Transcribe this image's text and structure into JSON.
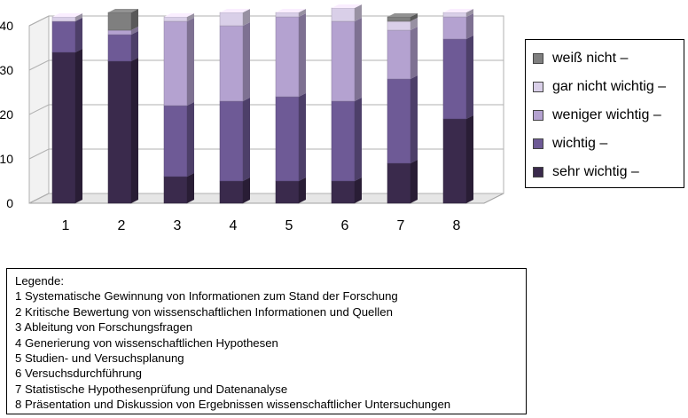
{
  "chart_data": {
    "type": "bar",
    "stacked": true,
    "three_d": true,
    "categories": [
      "1",
      "2",
      "3",
      "4",
      "5",
      "6",
      "7",
      "8"
    ],
    "ylim": [
      0,
      40
    ],
    "yticks": [
      "0",
      "10",
      "20",
      "30",
      "40"
    ],
    "grid": true,
    "legend_position": "right",
    "series": [
      {
        "name": "sehr wichtig –",
        "color": "#3a2a4c",
        "values": [
          34,
          32,
          6,
          5,
          5,
          5,
          9,
          19
        ]
      },
      {
        "name": "wichtig –",
        "color": "#6e5a96",
        "values": [
          7,
          6,
          16,
          18,
          19,
          18,
          19,
          18
        ]
      },
      {
        "name": "weniger wichtig –",
        "color": "#b4a2d0",
        "values": [
          0,
          1,
          19,
          17,
          18,
          18,
          11,
          5
        ]
      },
      {
        "name": "gar nicht wichtig –",
        "color": "#d9cfe8",
        "values": [
          1,
          0,
          1,
          3,
          1,
          3,
          2,
          1
        ]
      },
      {
        "name": "weiß nicht –",
        "color": "#7f7f7f",
        "values": [
          0,
          4,
          0,
          0,
          0,
          0,
          1,
          0
        ]
      }
    ]
  },
  "legend_order": [
    4,
    3,
    2,
    1,
    0
  ],
  "caption": {
    "title": "Legende:",
    "items": [
      "1 Systematische Gewinnung von Informationen zum Stand der Forschung",
      "2 Kritische Bewertung von wissenschaftlichen Informationen und Quellen",
      "3 Ableitung von Forschungsfragen",
      "4 Generierung von wissenschaftlichen Hypothesen",
      "5 Studien- und Versuchsplanung",
      "6 Versuchsdurchführung",
      "7 Statistische Hypothesenprüfung und Datenanalyse",
      "8 Präsentation und Diskussion von Ergebnissen wissenschaftlicher Untersuchungen"
    ]
  }
}
